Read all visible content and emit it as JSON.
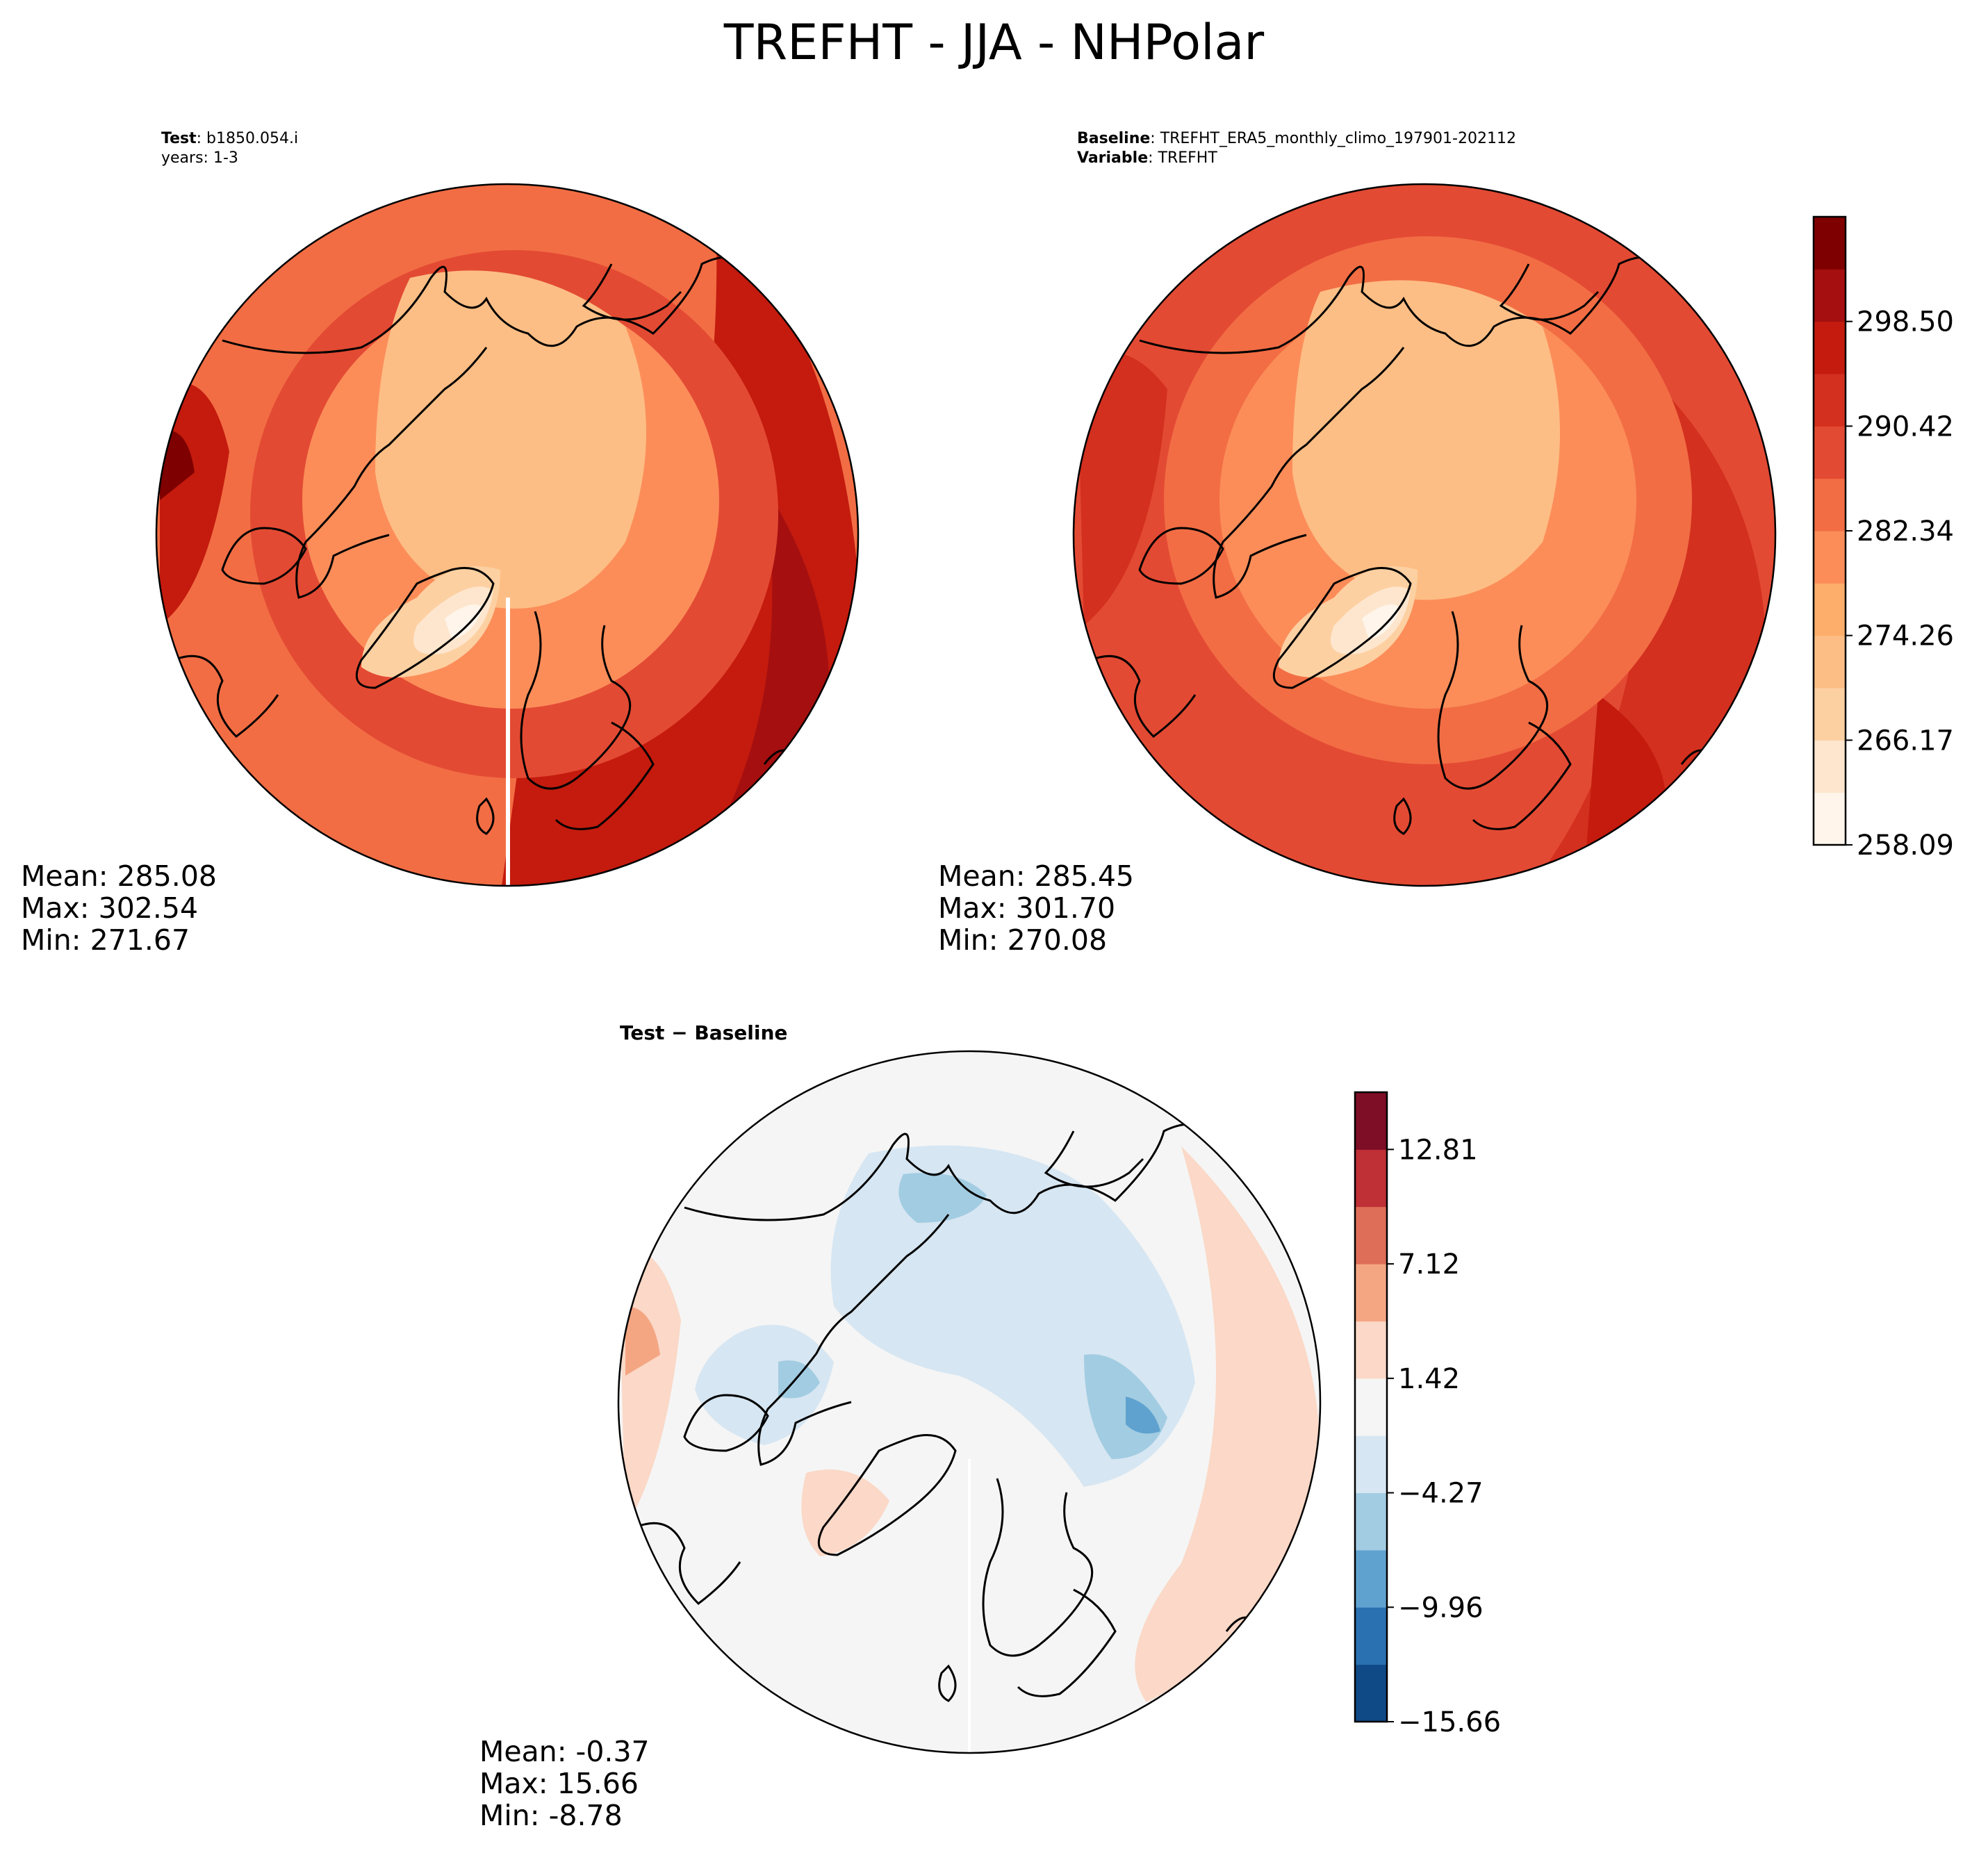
{
  "figure": {
    "title": "TREFHT - JJA - NHPolar"
  },
  "panels": {
    "test": {
      "caption_label": "Test",
      "caption_value": "b1850.054.i",
      "caption_line2": "years: 1-3",
      "mean": "Mean: 285.08",
      "max": "Max: 302.54",
      "min": "Min: 271.67"
    },
    "baseline": {
      "caption_label": "Baseline",
      "caption_value": "TREFHT_ERA5_monthly_climo_197901-202112",
      "caption_label2": "Variable",
      "caption_value2": "TREFHT",
      "mean": "Mean: 285.45",
      "max": "Max: 301.70",
      "min": "Min: 270.08"
    },
    "difference": {
      "title_a": "Test",
      "title_sep": " − ",
      "title_b": "Baseline",
      "mean": "Mean: -0.37",
      "max": "Max: 15.66",
      "min": "Min: -8.78"
    }
  },
  "colorbars": {
    "absolute": {
      "tick_labels": [
        "258.09",
        "266.17",
        "274.26",
        "282.34",
        "290.42",
        "298.50"
      ],
      "colors": [
        "#fff5eb",
        "#fee6ce",
        "#fdd0a2",
        "#fdbe85",
        "#fdae6b",
        "#fc8d59",
        "#f26d44",
        "#e34a33",
        "#d3301f",
        "#c41b0e",
        "#a50f0f",
        "#7f0000"
      ]
    },
    "difference": {
      "tick_labels": [
        "−15.66",
        "−9.96",
        "−4.27",
        "1.42",
        "7.12",
        "12.81"
      ],
      "colors": [
        "#104a86",
        "#2a71b2",
        "#5fa2cf",
        "#a2cce2",
        "#d6e6f2",
        "#f5f5f5",
        "#fbd8c7",
        "#f4a683",
        "#de6e57",
        "#be2f36",
        "#7e0d26"
      ]
    }
  }
}
